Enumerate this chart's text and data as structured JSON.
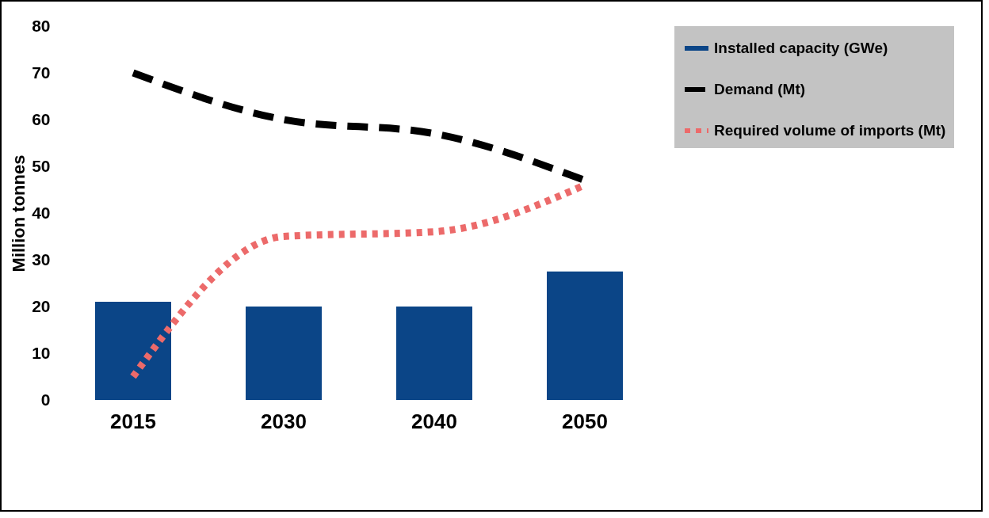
{
  "chart_data": {
    "type": "bar",
    "ylabel": "Million tonnes",
    "categories": [
      "2015",
      "2030",
      "2040",
      "2050"
    ],
    "series": [
      {
        "name": "Installed capacity (GWe)",
        "color": "#0b4587",
        "values": [
          21,
          20,
          20,
          27.5
        ]
      },
      {
        "name": "Demand (Mt)",
        "type": "line",
        "color": "#000000",
        "line_style": "dashed",
        "values": [
          70,
          60,
          57,
          47
        ]
      },
      {
        "name": "Required volume of imports (Mt)",
        "type": "line",
        "color": "#ec6a6a",
        "line_style": "dotted",
        "values": [
          5,
          35,
          36,
          46
        ]
      }
    ],
    "ylim": [
      0,
      80
    ],
    "yticks": [
      0,
      10,
      20,
      30,
      40,
      50,
      60,
      70,
      80
    ],
    "legend": "top right"
  }
}
